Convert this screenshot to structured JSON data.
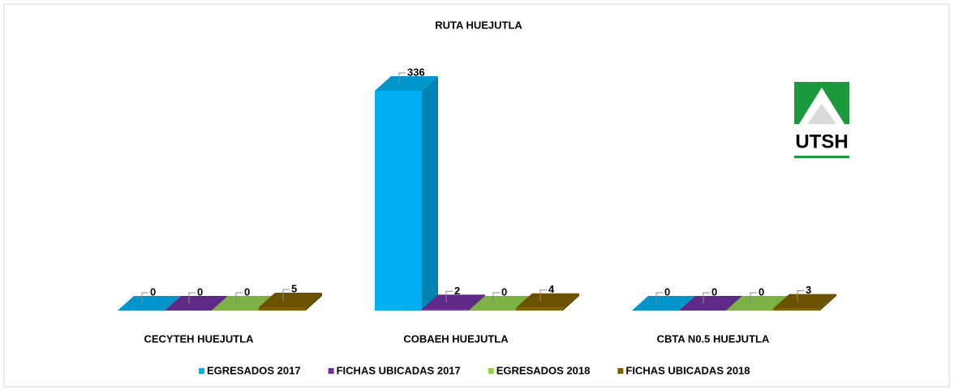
{
  "chart_data": {
    "type": "bar3d",
    "title": "RUTA HUEJUTLA",
    "categories": [
      "CECYTEH HUEJUTLA",
      "COBAEH HUEJUTLA",
      "CBTA N0.5 HUEJUTLA"
    ],
    "series": [
      {
        "name": "EGRESADOS 2017",
        "color": "#00b0f0",
        "values": [
          0,
          336,
          0
        ]
      },
      {
        "name": "FICHAS UBICADAS 2017",
        "color": "#7030a0",
        "values": [
          0,
          2,
          0
        ]
      },
      {
        "name": "EGRESADOS 2018",
        "color": "#92d050",
        "values": [
          0,
          0,
          0
        ]
      },
      {
        "name": "FICHAS UBICADAS 2018",
        "color": "#7f6000",
        "values": [
          5,
          4,
          3
        ]
      }
    ],
    "legend": "bottom",
    "data_labels": true
  },
  "logo": {
    "text": "UTSH"
  }
}
